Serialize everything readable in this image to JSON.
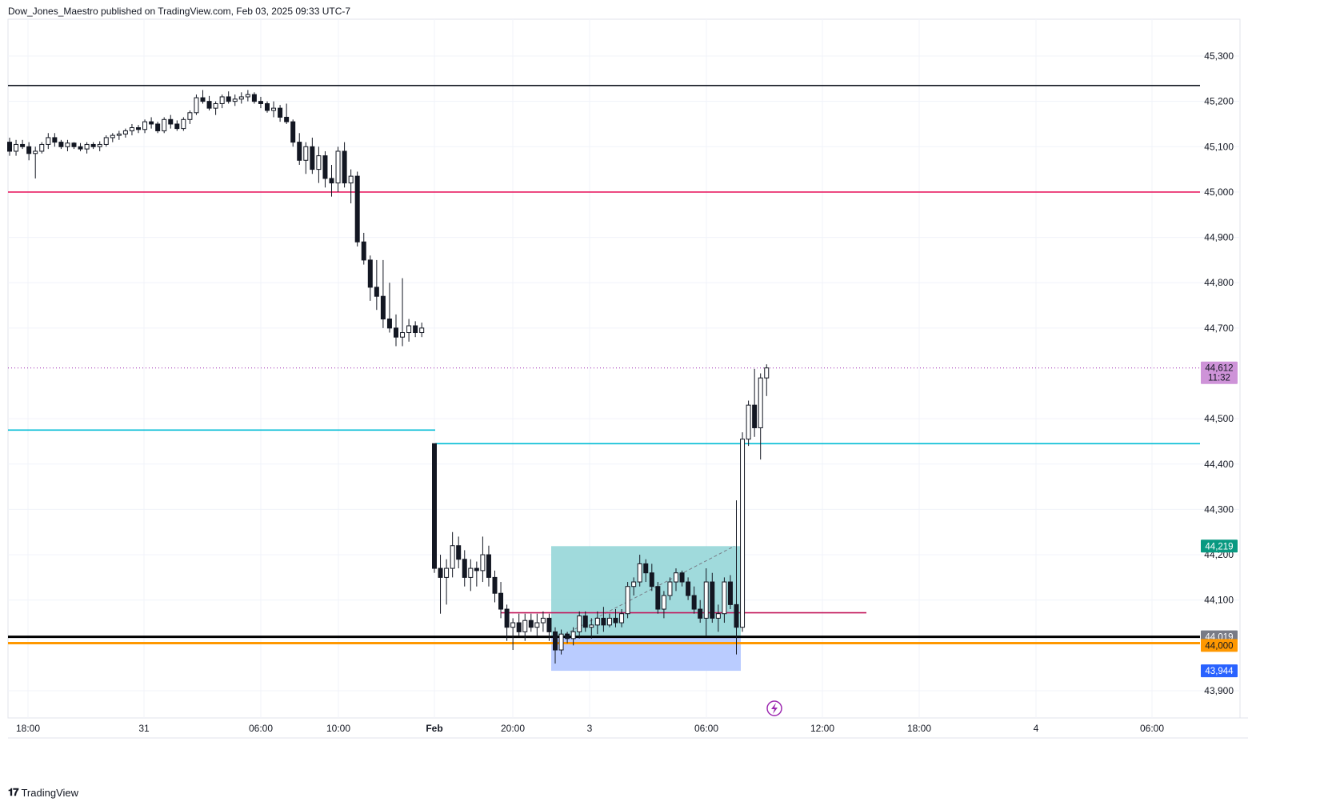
{
  "header": {
    "published": "Dow_Jones_Maestro published on TradingView.com, Feb 03, 2025 09:33 UTC-7"
  },
  "footer": {
    "brand_icon": "tradingview-logo-icon",
    "brand_text": "TradingView"
  },
  "chart_data": {
    "type": "candlestick",
    "title": "",
    "ylim": [
      43860,
      45400
    ],
    "y_ticks": [
      "45,300",
      "45,200",
      "45,100",
      "45,000",
      "44,900",
      "44,800",
      "44,700",
      "44,500",
      "44,400",
      "44,300",
      "44,200",
      "44,100",
      "43,900"
    ],
    "x_ticks": [
      "18:00",
      "31",
      "06:00",
      "10:00",
      "Feb",
      "20:00",
      "3",
      "06:00",
      "12:00",
      "18:00",
      "4",
      "06:00"
    ],
    "price_labels": [
      {
        "text": "44,612",
        "sub": "11:32",
        "value": 44612,
        "color": "#ce93d8",
        "text_color": "#131722"
      },
      {
        "text": "44,219",
        "value": 44219,
        "color": "#089981",
        "text_color": "#ffffff"
      },
      {
        "text": "44,019",
        "value": 44019,
        "color": "#787b86",
        "text_color": "#ffffff"
      },
      {
        "text": "44,000",
        "value": 44000,
        "color": "#ff9800",
        "text_color": "#131722"
      },
      {
        "text": "43,944",
        "value": 43944,
        "color": "#2962ff",
        "text_color": "#ffffff"
      }
    ],
    "levels": [
      {
        "value": 45235,
        "color": "#131722"
      },
      {
        "value": 45000,
        "color": "#e91e63"
      },
      {
        "value": 44475,
        "color": "#00bcd4",
        "segment": "left"
      },
      {
        "value": 44445,
        "color": "#00bcd4",
        "segment": "right"
      },
      {
        "value": 44072,
        "color": "#c2185b",
        "segment": "box"
      },
      {
        "value": 44019,
        "color": "#000000"
      },
      {
        "value": 44005,
        "color": "#ff9800"
      },
      {
        "value": 44612,
        "color": "#9c27b0",
        "dotted": true
      }
    ],
    "position": {
      "entry": 44019,
      "target": 44219,
      "stop": 43944
    },
    "candles": [
      [
        45110,
        45120,
        45080,
        45090
      ],
      [
        45090,
        45115,
        45080,
        45105
      ],
      [
        45105,
        45115,
        45095,
        45100
      ],
      [
        45100,
        45110,
        45070,
        45085
      ],
      [
        45085,
        45100,
        45030,
        45090
      ],
      [
        45090,
        45110,
        45085,
        45105
      ],
      [
        45105,
        45130,
        45095,
        45120
      ],
      [
        45120,
        45130,
        45100,
        45110
      ],
      [
        45110,
        45115,
        45095,
        45100
      ],
      [
        45100,
        45115,
        45090,
        45108
      ],
      [
        45108,
        45110,
        45095,
        45100
      ],
      [
        45100,
        45108,
        45090,
        45095
      ],
      [
        45095,
        45110,
        45085,
        45105
      ],
      [
        45105,
        45110,
        45095,
        45100
      ],
      [
        45100,
        45112,
        45090,
        45105
      ],
      [
        45105,
        45125,
        45100,
        45120
      ],
      [
        45120,
        45130,
        45110,
        45125
      ],
      [
        45125,
        45135,
        45115,
        45128
      ],
      [
        45128,
        45140,
        45120,
        45135
      ],
      [
        45135,
        45150,
        45125,
        45142
      ],
      [
        45142,
        45148,
        45130,
        45138
      ],
      [
        45138,
        45160,
        45130,
        45155
      ],
      [
        45155,
        45165,
        45140,
        45150
      ],
      [
        45150,
        45155,
        45130,
        45135
      ],
      [
        45135,
        45165,
        45130,
        45160
      ],
      [
        45160,
        45170,
        45140,
        45150
      ],
      [
        45150,
        45158,
        45135,
        45140
      ],
      [
        45140,
        45165,
        45135,
        45160
      ],
      [
        45160,
        45180,
        45150,
        45175
      ],
      [
        45175,
        45215,
        45170,
        45208
      ],
      [
        45208,
        45225,
        45195,
        45200
      ],
      [
        45200,
        45212,
        45180,
        45185
      ],
      [
        45185,
        45200,
        45170,
        45195
      ],
      [
        45195,
        45215,
        45185,
        45210
      ],
      [
        45210,
        45222,
        45195,
        45200
      ],
      [
        45200,
        45215,
        45190,
        45205
      ],
      [
        45205,
        45220,
        45195,
        45210
      ],
      [
        45210,
        45225,
        45200,
        45215
      ],
      [
        45215,
        45220,
        45195,
        45200
      ],
      [
        45200,
        45210,
        45185,
        45195
      ],
      [
        45195,
        45200,
        45175,
        45180
      ],
      [
        45180,
        45200,
        45165,
        45185
      ],
      [
        45185,
        45192,
        45155,
        45165
      ],
      [
        45165,
        45195,
        45150,
        45155
      ],
      [
        45155,
        45160,
        45100,
        45110
      ],
      [
        45110,
        45130,
        45060,
        45070
      ],
      [
        45070,
        45110,
        45040,
        45100
      ],
      [
        45100,
        45120,
        45040,
        45050
      ],
      [
        45050,
        45100,
        45020,
        45080
      ],
      [
        45080,
        45090,
        45010,
        45030
      ],
      [
        45030,
        45060,
        44990,
        45020
      ],
      [
        45020,
        45100,
        45000,
        45090
      ],
      [
        45090,
        45110,
        45010,
        45020
      ],
      [
        45020,
        45050,
        44975,
        45035
      ],
      [
        45035,
        45045,
        44880,
        44890
      ],
      [
        44890,
        44910,
        44840,
        44850
      ],
      [
        44850,
        44860,
        44760,
        44790
      ],
      [
        44790,
        44850,
        44740,
        44770
      ],
      [
        44770,
        44850,
        44700,
        44720
      ],
      [
        44720,
        44800,
        44690,
        44700
      ],
      [
        44700,
        44730,
        44660,
        44680
      ],
      [
        44680,
        44810,
        44660,
        44690
      ],
      [
        44690,
        44720,
        44670,
        44705
      ],
      [
        44705,
        44715,
        44680,
        44690
      ],
      [
        44690,
        44712,
        44680,
        44700
      ],
      [
        44445,
        44445,
        44160,
        44170
      ],
      [
        44170,
        44200,
        44070,
        44150
      ],
      [
        44150,
        44190,
        44090,
        44170
      ],
      [
        44170,
        44250,
        44150,
        44220
      ],
      [
        44220,
        44240,
        44170,
        44190
      ],
      [
        44190,
        44210,
        44130,
        44150
      ],
      [
        44150,
        44190,
        44120,
        44170
      ],
      [
        44170,
        44185,
        44130,
        44165
      ],
      [
        44165,
        44240,
        44140,
        44200
      ],
      [
        44200,
        44220,
        44130,
        44150
      ],
      [
        44150,
        44165,
        44095,
        44115
      ],
      [
        44115,
        44140,
        44060,
        44080
      ],
      [
        44080,
        44090,
        44010,
        44040
      ],
      [
        44040,
        44060,
        43990,
        44050
      ],
      [
        44050,
        44070,
        44020,
        44030
      ],
      [
        44030,
        44070,
        44010,
        44055
      ],
      [
        44055,
        44070,
        44030,
        44040
      ],
      [
        44040,
        44070,
        44020,
        44050
      ],
      [
        44050,
        44075,
        44030,
        44060
      ],
      [
        44060,
        44070,
        44010,
        44030
      ],
      [
        44030,
        44040,
        43960,
        43990
      ],
      [
        43990,
        44035,
        43980,
        44025
      ],
      [
        44025,
        44030,
        44005,
        44015
      ],
      [
        44015,
        44040,
        44000,
        44030
      ],
      [
        44030,
        44075,
        44015,
        44065
      ],
      [
        44065,
        44075,
        44030,
        44040
      ],
      [
        44040,
        44060,
        44015,
        44045
      ],
      [
        44045,
        44075,
        44025,
        44060
      ],
      [
        44060,
        44085,
        44030,
        44045
      ],
      [
        44045,
        44070,
        44040,
        44060
      ],
      [
        44060,
        44080,
        44040,
        44050
      ],
      [
        44050,
        44080,
        44040,
        44070
      ],
      [
        44070,
        44140,
        44060,
        44130
      ],
      [
        44130,
        44150,
        44110,
        44140
      ],
      [
        44140,
        44200,
        44130,
        44180
      ],
      [
        44180,
        44190,
        44140,
        44160
      ],
      [
        44160,
        44180,
        44120,
        44130
      ],
      [
        44130,
        44140,
        44070,
        44080
      ],
      [
        44080,
        44120,
        44060,
        44110
      ],
      [
        44110,
        44150,
        44100,
        44140
      ],
      [
        44140,
        44170,
        44120,
        44160
      ],
      [
        44160,
        44165,
        44130,
        44140
      ],
      [
        44140,
        44150,
        44100,
        44110
      ],
      [
        44110,
        44130,
        44070,
        44080
      ],
      [
        44080,
        44100,
        44050,
        44060
      ],
      [
        44060,
        44170,
        44020,
        44140
      ],
      [
        44140,
        44160,
        44050,
        44060
      ],
      [
        44060,
        44090,
        44030,
        44070
      ],
      [
        44070,
        44150,
        44050,
        44140
      ],
      [
        44140,
        44155,
        44080,
        44090
      ],
      [
        44090,
        44320,
        43980,
        44040
      ],
      [
        44040,
        44470,
        44030,
        44455
      ],
      [
        44455,
        44540,
        44440,
        44530
      ],
      [
        44530,
        44610,
        44460,
        44480
      ],
      [
        44480,
        44600,
        44410,
        44590
      ],
      [
        44590,
        44620,
        44550,
        44612
      ]
    ]
  }
}
